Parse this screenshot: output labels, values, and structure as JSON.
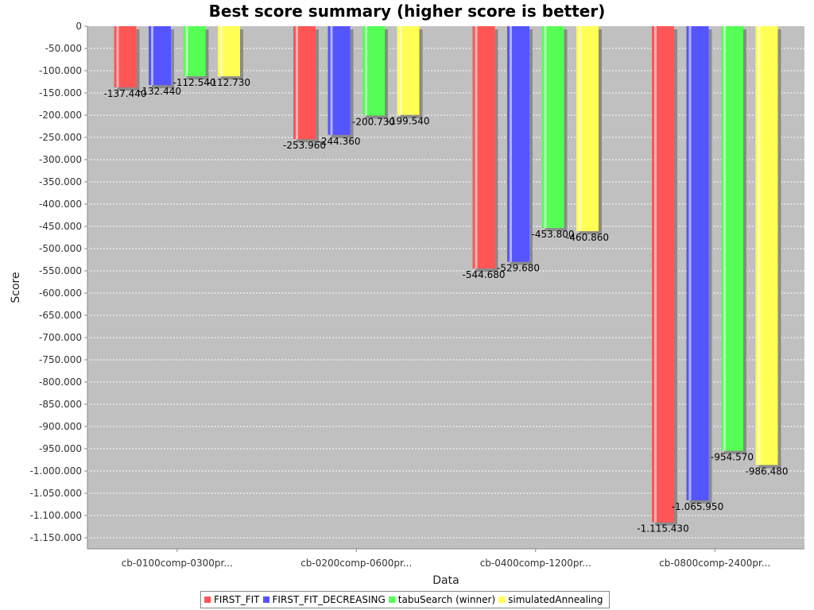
{
  "chart_data": {
    "type": "bar",
    "title": "Best score summary (higher score is better)",
    "xlabel": "Data",
    "ylabel": "Score",
    "ylim": [
      -1170000,
      0
    ],
    "ytick_step": 50000,
    "grid": true,
    "legend_position": "bottom",
    "categories": [
      "cb-0100comp-0300pr...",
      "cb-0200comp-0600pr...",
      "cb-0400comp-1200pr...",
      "cb-0800comp-2400pr..."
    ],
    "series": [
      {
        "name": "FIRST_FIT",
        "color": "#ff5555",
        "values": [
          -137440,
          -253960,
          -544680,
          -1115430
        ],
        "labels": [
          "-137.440",
          "-253.960",
          "-544.680",
          "-1.115.430"
        ]
      },
      {
        "name": "FIRST_FIT_DECREASING",
        "color": "#5555ff",
        "values": [
          -132440,
          -244360,
          -529680,
          -1065950
        ],
        "labels": [
          "-132.440",
          "-244.360",
          "-529.680",
          "-1.065.950"
        ]
      },
      {
        "name": "tabuSearch (winner)",
        "color": "#55ff55",
        "values": [
          -112540,
          -200730,
          -453800,
          -954570
        ],
        "labels": [
          "-112.540",
          "-200.730",
          "-453.800",
          "-954.570"
        ]
      },
      {
        "name": "simulatedAnnealing",
        "color": "#ffff55",
        "values": [
          -112730,
          -199540,
          -460860,
          -986480
        ],
        "labels": [
          "-112.730",
          "-199.540",
          "-460.860",
          "-986.480"
        ]
      }
    ],
    "yticks": [
      "0",
      "-50.000",
      "-100.000",
      "-150.000",
      "-200.000",
      "-250.000",
      "-300.000",
      "-350.000",
      "-400.000",
      "-450.000",
      "-500.000",
      "-550.000",
      "-600.000",
      "-650.000",
      "-700.000",
      "-750.000",
      "-800.000",
      "-850.000",
      "-900.000",
      "-950.000",
      "-1.000.000",
      "-1.050.000",
      "-1.100.000",
      "-1.150.000"
    ]
  }
}
